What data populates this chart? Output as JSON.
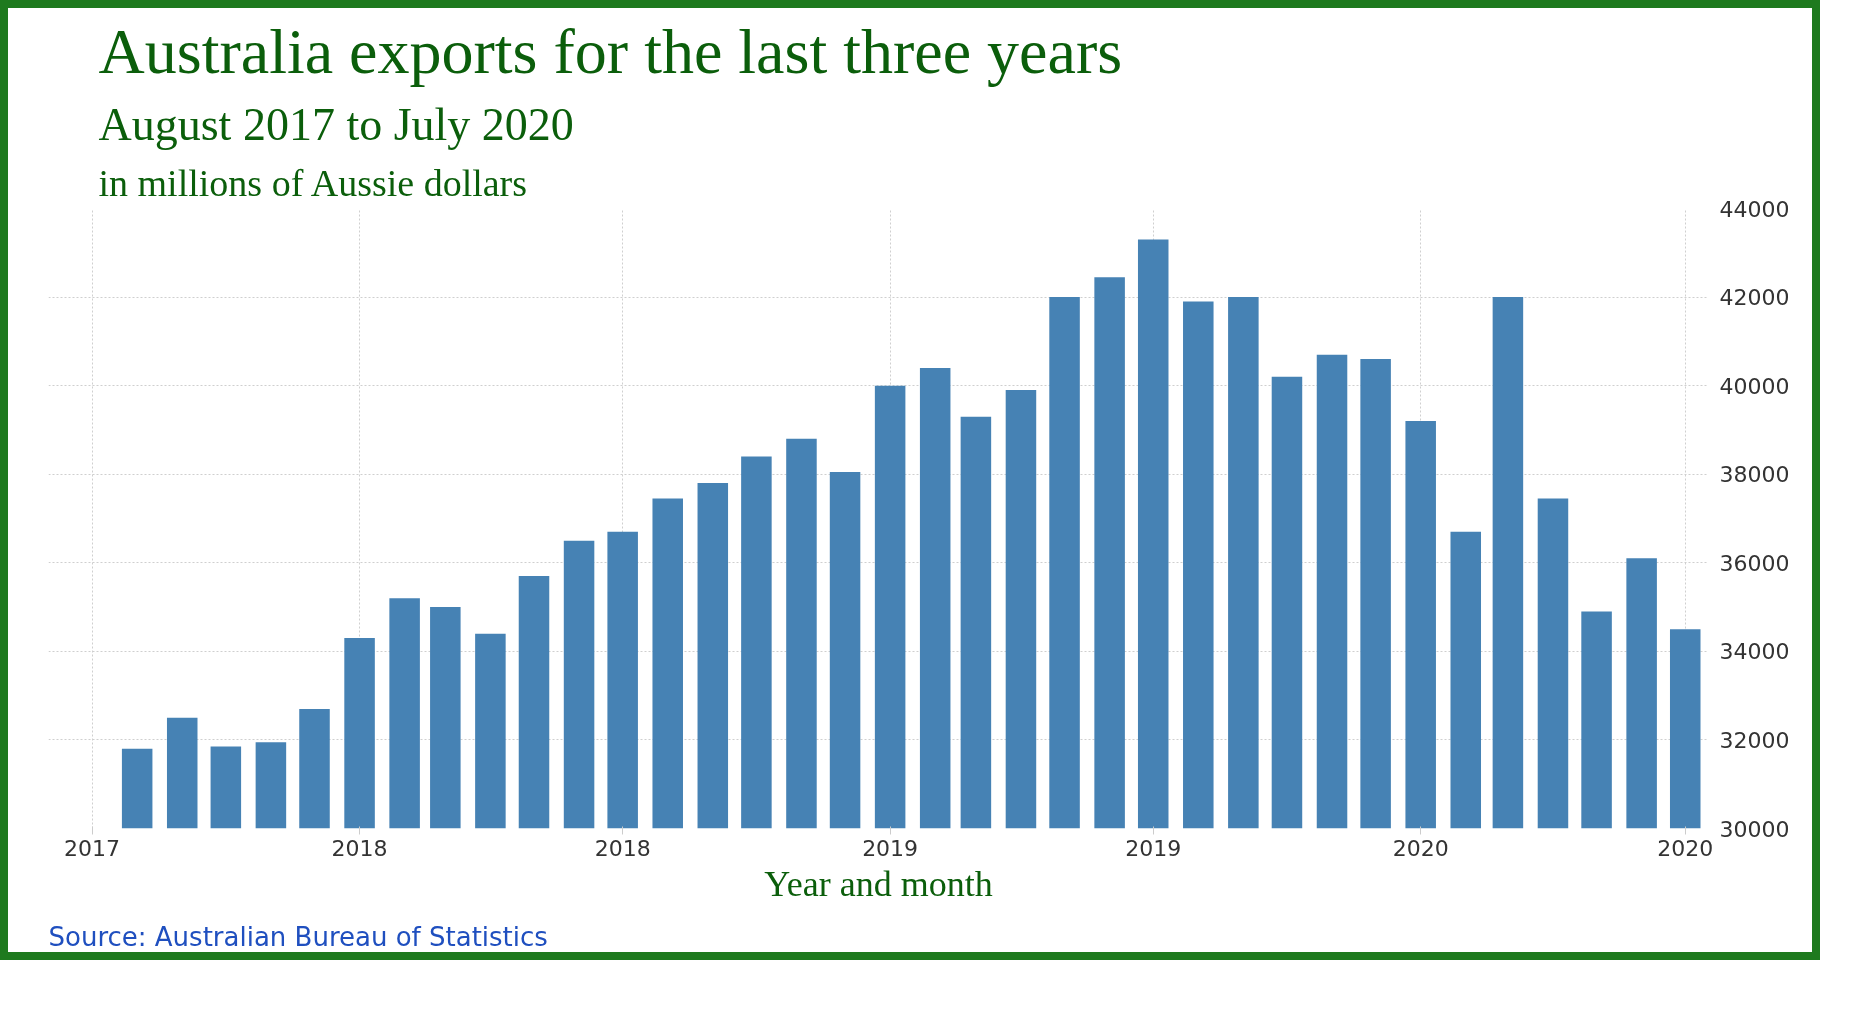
{
  "chart_data": {
    "type": "bar",
    "title": "Australia exports for the last three years",
    "subtitle": "August 2017 to July 2020",
    "xlabel": "Year and month",
    "annotations": [
      "in millions of Aussie dollars",
      "Source: Australian Bureau of Statistics"
    ],
    "x": [
      "2017-08",
      "2017-09",
      "2017-10",
      "2017-11",
      "2017-12",
      "2018-01",
      "2018-02",
      "2018-03",
      "2018-04",
      "2018-05",
      "2018-06",
      "2018-07",
      "2018-08",
      "2018-09",
      "2018-10",
      "2018-11",
      "2018-12",
      "2019-01",
      "2019-02",
      "2019-03",
      "2019-04",
      "2019-05",
      "2019-06",
      "2019-07",
      "2019-08",
      "2019-09",
      "2019-10",
      "2019-11",
      "2019-12",
      "2020-01",
      "2020-02",
      "2020-03",
      "2020-04",
      "2020-05",
      "2020-06",
      "2020-07"
    ],
    "values": [
      31800,
      32500,
      31850,
      31950,
      32700,
      34300,
      35200,
      35000,
      34400,
      35700,
      36500,
      36700,
      37450,
      37800,
      38400,
      38800,
      38050,
      40000,
      40400,
      39300,
      39900,
      42000,
      42450,
      43300,
      41900,
      42000,
      40200,
      40700,
      40600,
      39200,
      36700,
      42000,
      37450,
      34900,
      36100,
      34500
    ],
    "color": "#4682b4",
    "xlim": [
      "2017-06-01",
      "2020-07-17"
    ],
    "xticks": [
      {
        "value": "2017-07",
        "label": "2017"
      },
      {
        "value": "2018-01",
        "label": "2018"
      },
      {
        "value": "2018-07",
        "label": "2018"
      },
      {
        "value": "2019-01",
        "label": "2019"
      },
      {
        "value": "2019-07",
        "label": "2019"
      },
      {
        "value": "2020-01",
        "label": "2020"
      },
      {
        "value": "2020-07",
        "label": "2020"
      }
    ],
    "ylim": [
      30000,
      44000
    ],
    "yticks": [
      30000,
      32000,
      34000,
      36000,
      38000,
      40000,
      42000,
      44000
    ],
    "grid": true
  }
}
